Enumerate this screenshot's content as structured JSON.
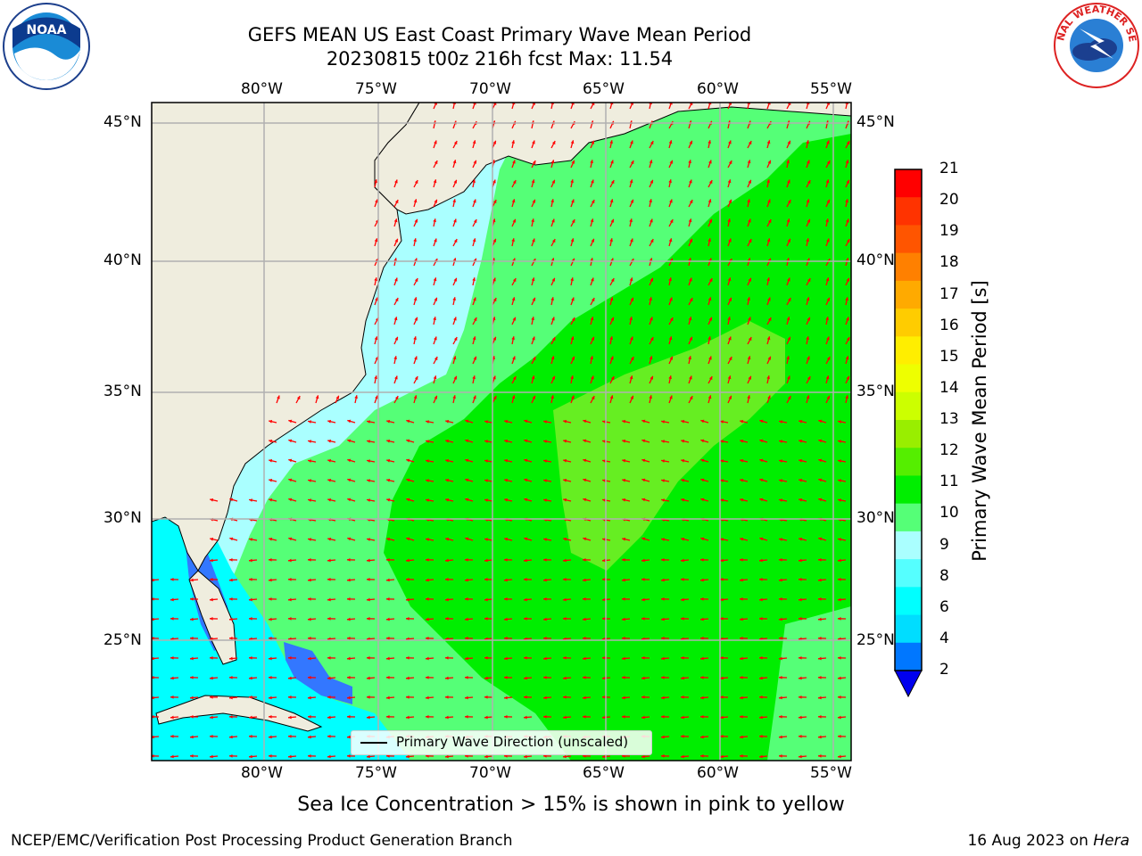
{
  "title": {
    "line1": "GEFS MEAN US East Coast Primary Wave Mean Period",
    "line2": "20230815 t00z 216h fcst   Max: 11.54"
  },
  "map": {
    "lon_labels": [
      "80°W",
      "75°W",
      "70°W",
      "65°W",
      "60°W",
      "55°W"
    ],
    "lat_labels": [
      "45°N",
      "40°N",
      "35°N",
      "30°N",
      "25°N"
    ],
    "legend_label": "Primary Wave Direction (unscaled)",
    "land_color": "#efedde",
    "grid_color": "#b0b0b0",
    "arrow_color": "#ff0000"
  },
  "colorbar": {
    "title": "Primary Wave Mean Period [s]",
    "labels": [
      "21",
      "20",
      "19",
      "18",
      "17",
      "16",
      "15",
      "14",
      "13",
      "12",
      "11",
      "10",
      "9",
      "8",
      "6",
      "4",
      "2"
    ],
    "colors": [
      "#ff0000",
      "#ff3300",
      "#ff5500",
      "#ff8000",
      "#ffaa00",
      "#ffcc00",
      "#ffee00",
      "#eeff00",
      "#ccff00",
      "#99ee00",
      "#55ee00",
      "#00ee00",
      "#55ff77",
      "#aaffff",
      "#55ffff",
      "#00ffff",
      "#00ddff",
      "#0077ff"
    ],
    "extend_color": "#0000ee"
  },
  "subtitle": "Sea Ice Concentration > 15% is shown in pink to yellow",
  "footer": {
    "left": "NCEP/EMC/Verification Post Processing Product Generation Branch",
    "date": "16 Aug 2023 on ",
    "host": "Hera"
  },
  "logos": {
    "left": "noaa-logo",
    "right": "nws-logo"
  }
}
